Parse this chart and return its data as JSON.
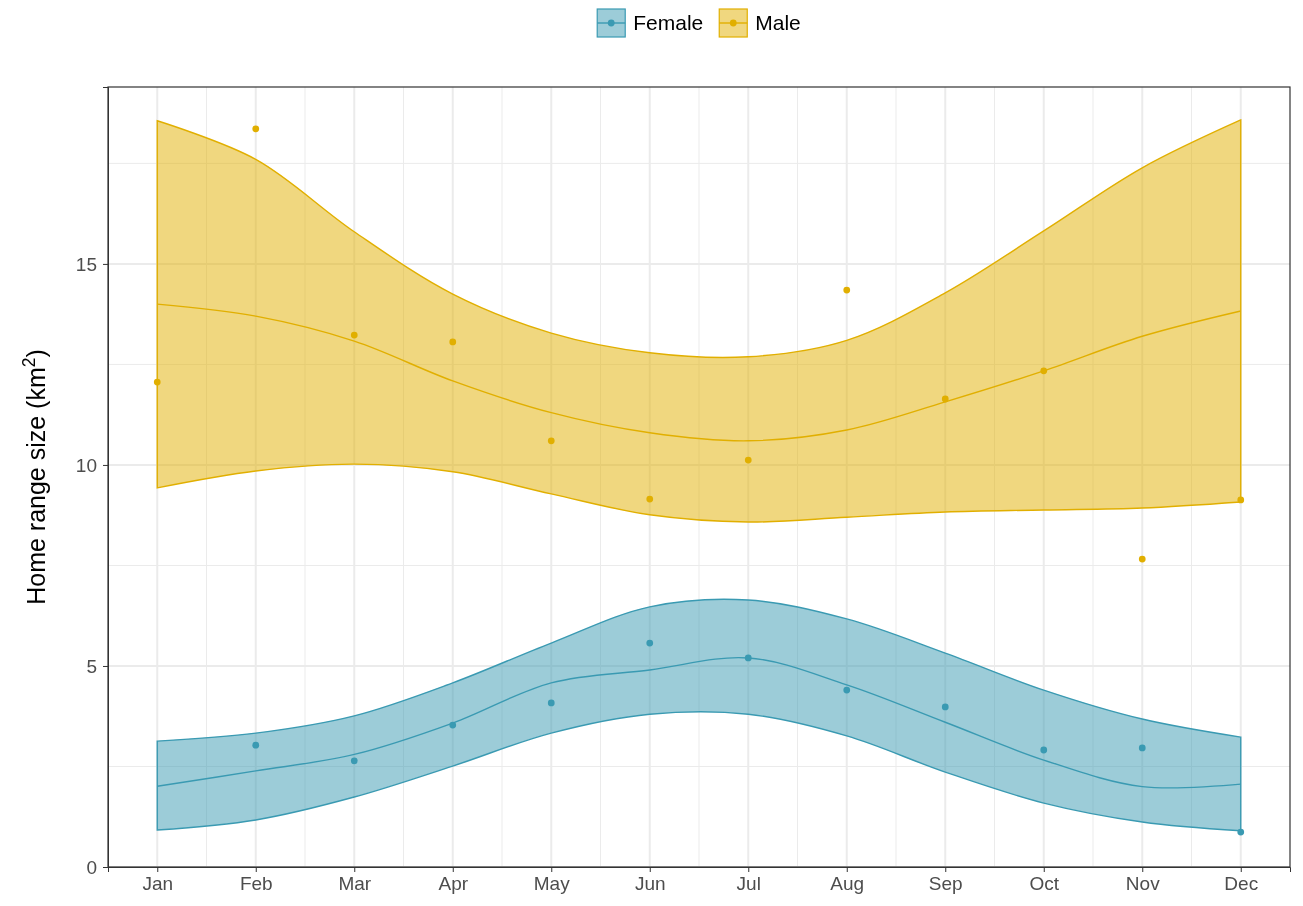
{
  "chart_data": {
    "type": "line",
    "ylabel": "Home range size (km$^{2}$)",
    "categories": [
      "Jan",
      "Feb",
      "Mar",
      "Apr",
      "May",
      "Jun",
      "Jul",
      "Aug",
      "Sep",
      "Oct",
      "Nov",
      "Dec"
    ],
    "series": [
      {
        "name": "Female",
        "type": "line",
        "marker": "none",
        "color": "#3a9ab2",
        "values": [
          2.01,
          2.39,
          2.8,
          3.58,
          4.58,
          4.9,
          5.2,
          4.53,
          3.6,
          2.66,
          2.0,
          2.06
        ],
        "lower": [
          0.92,
          1.17,
          1.74,
          2.51,
          3.33,
          3.8,
          3.8,
          3.26,
          2.36,
          1.59,
          1.12,
          0.9
        ],
        "upper": [
          3.13,
          3.33,
          3.76,
          4.58,
          5.57,
          6.47,
          6.64,
          6.17,
          5.32,
          4.4,
          3.68,
          3.23
        ]
      },
      {
        "name": "Male",
        "type": "line",
        "marker": "none",
        "color": "#e1af00",
        "values": [
          14.0,
          13.7,
          13.08,
          12.09,
          11.3,
          10.8,
          10.6,
          10.87,
          11.57,
          12.34,
          13.2,
          13.83
        ],
        "lower": [
          9.43,
          9.85,
          10.02,
          9.83,
          9.28,
          8.76,
          8.58,
          8.7,
          8.83,
          8.88,
          8.93,
          9.08
        ],
        "upper": [
          18.56,
          17.6,
          15.8,
          14.25,
          13.28,
          12.79,
          12.69,
          13.1,
          14.28,
          15.82,
          17.39,
          18.58
        ]
      },
      {
        "type": "scatter",
        "marker": "circle",
        "color": "#3a9ab2",
        "values": [
          null,
          3.03,
          2.64,
          3.53,
          4.08,
          5.57,
          5.2,
          4.4,
          3.98,
          2.91,
          2.96,
          0.87
        ]
      },
      {
        "type": "scatter",
        "marker": "circle",
        "color": "#e1af00",
        "values": [
          12.06,
          18.36,
          13.23,
          13.06,
          10.6,
          9.15,
          10.12,
          14.35,
          11.64,
          12.34,
          7.66,
          9.13
        ]
      }
    ],
    "ylim": [
      0,
      19.4
    ],
    "yticks": [
      0,
      5,
      10,
      15
    ],
    "grid": true,
    "legend": "top"
  }
}
